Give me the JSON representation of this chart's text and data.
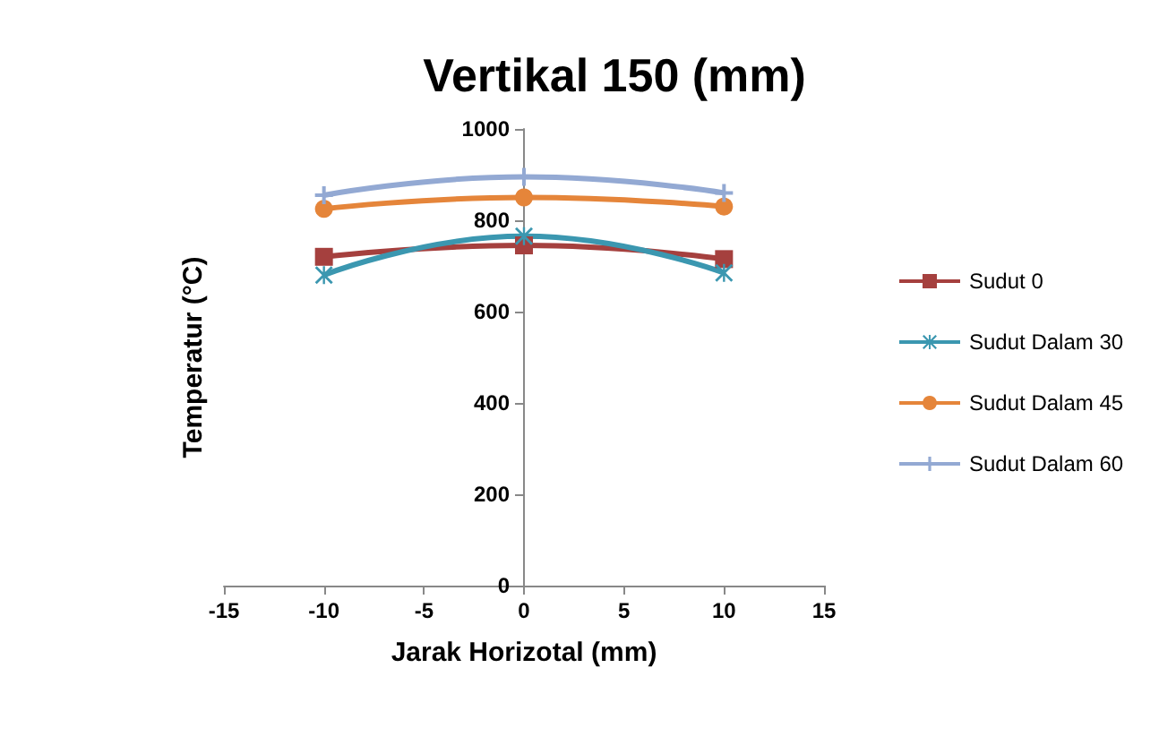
{
  "chart_data": {
    "type": "line",
    "title": "Vertikal 150 (mm)",
    "xlabel": "Jarak Horizotal (mm)",
    "ylabel": "Temperatur (°C)",
    "x": [
      -10,
      0,
      10
    ],
    "series": [
      {
        "name": "Sudut 0",
        "color": "#a5403e",
        "marker": "square",
        "values": [
          720,
          745,
          715
        ]
      },
      {
        "name": "Sudut Dalam 30",
        "color": "#3b97b0",
        "marker": "star",
        "values": [
          680,
          765,
          685
        ]
      },
      {
        "name": "Sudut Dalam 45",
        "color": "#e5853a",
        "marker": "circle",
        "values": [
          825,
          850,
          830
        ]
      },
      {
        "name": "Sudut Dalam 60",
        "color": "#93a9d3",
        "marker": "cross",
        "values": [
          855,
          895,
          860
        ]
      }
    ],
    "xlim": [
      -15,
      15
    ],
    "xticks": [
      -15,
      -10,
      -5,
      0,
      5,
      10,
      15
    ],
    "ylim": [
      0,
      1000
    ],
    "yticks": [
      0,
      200,
      400,
      600,
      800,
      1000
    ],
    "grid": false,
    "legend": "right"
  }
}
